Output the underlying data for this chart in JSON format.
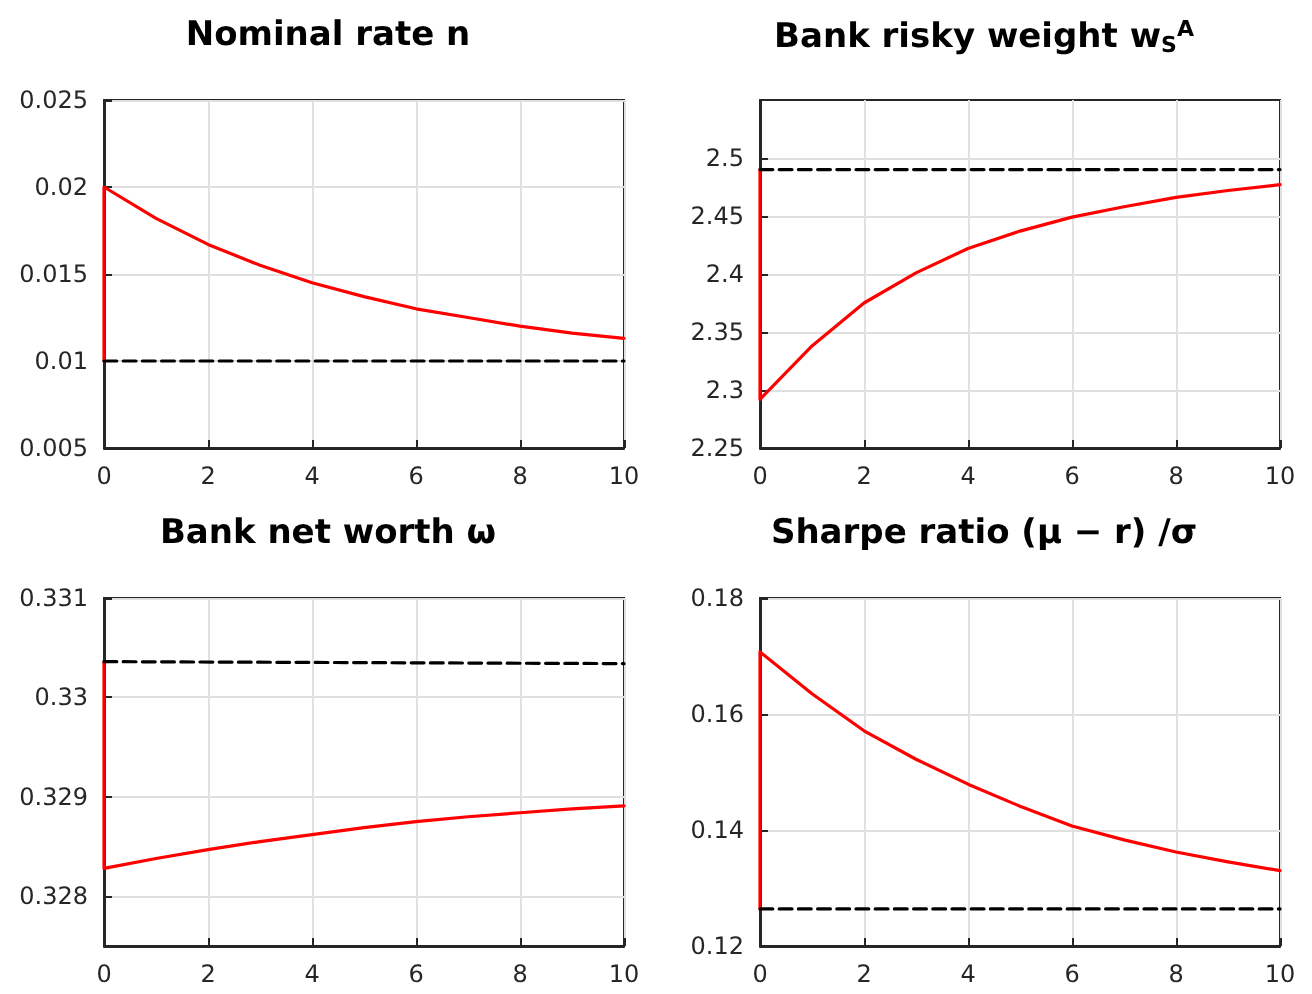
{
  "chart_data": [
    {
      "type": "line",
      "title": "Nominal rate n",
      "xlim": [
        0,
        10
      ],
      "xticks": [
        0,
        2,
        4,
        6,
        8,
        10
      ],
      "ylim": [
        0.005,
        0.025
      ],
      "yticks": [
        0.005,
        0.01,
        0.015,
        0.02,
        0.025
      ],
      "grid": true,
      "marker": "none",
      "series": [
        {
          "color": "#ff0000",
          "line_style": "solid",
          "x": [
            0,
            0,
            1,
            2,
            3,
            4,
            5,
            6,
            7,
            8,
            9,
            10
          ],
          "values": [
            0.01,
            0.02,
            0.0182,
            0.0167,
            0.0155,
            0.0145,
            0.0137,
            0.013,
            0.0125,
            0.012,
            0.0116,
            0.0113
          ]
        },
        {
          "color": "#000000",
          "line_style": "dashed",
          "x": [
            0,
            10
          ],
          "values": [
            0.01,
            0.01
          ]
        }
      ]
    },
    {
      "type": "line",
      "title": "Bank risky weight w$_{S}$$^{A}$",
      "xlim": [
        0,
        10
      ],
      "xticks": [
        0,
        2,
        4,
        6,
        8,
        10
      ],
      "ylim": [
        2.25,
        2.55
      ],
      "yticks": [
        2.25,
        2.3,
        2.35,
        2.4,
        2.45,
        2.5
      ],
      "grid": true,
      "marker": "none",
      "series": [
        {
          "color": "#ff0000",
          "line_style": "solid",
          "x": [
            0,
            0,
            1,
            2,
            3,
            4,
            5,
            6,
            7,
            8,
            9,
            10
          ],
          "values": [
            2.49,
            2.292,
            2.338,
            2.375,
            2.401,
            2.422,
            2.437,
            2.449,
            2.458,
            2.466,
            2.472,
            2.477
          ]
        },
        {
          "color": "#000000",
          "line_style": "dashed",
          "x": [
            0,
            10
          ],
          "values": [
            2.49,
            2.49
          ]
        }
      ]
    },
    {
      "type": "line",
      "title": "Bank net worth ω",
      "xlim": [
        0,
        10
      ],
      "xticks": [
        0,
        2,
        4,
        6,
        8,
        10
      ],
      "ylim": [
        0.3275,
        0.331
      ],
      "yticks": [
        0.328,
        0.329,
        0.33,
        0.331
      ],
      "grid": true,
      "marker": "none",
      "series": [
        {
          "color": "#ff0000",
          "line_style": "solid",
          "x": [
            0,
            0,
            1,
            2,
            3,
            4,
            5,
            6,
            7,
            8,
            9,
            10
          ],
          "values": [
            0.33036,
            0.32828,
            0.32838,
            0.32847,
            0.32855,
            0.32862,
            0.32869,
            0.32875,
            0.3288,
            0.32884,
            0.32888,
            0.32891
          ]
        },
        {
          "color": "#000000",
          "line_style": "dashed",
          "x": [
            0,
            10
          ],
          "values": [
            0.33036,
            0.33034
          ]
        }
      ]
    },
    {
      "type": "line",
      "title": "Sharpe ratio (μ − r) /σ",
      "xlim": [
        0,
        10
      ],
      "xticks": [
        0,
        2,
        4,
        6,
        8,
        10
      ],
      "ylim": [
        0.12,
        0.18
      ],
      "yticks": [
        0.12,
        0.14,
        0.16,
        0.18
      ],
      "grid": true,
      "marker": "none",
      "series": [
        {
          "color": "#ff0000",
          "line_style": "solid",
          "x": [
            0,
            0,
            1,
            2,
            3,
            4,
            5,
            6,
            7,
            8,
            9,
            10
          ],
          "values": [
            0.1264,
            0.1707,
            0.1635,
            0.1571,
            0.1522,
            0.1479,
            0.1441,
            0.1407,
            0.1383,
            0.1362,
            0.1345,
            0.133
          ]
        },
        {
          "color": "#000000",
          "line_style": "dashed",
          "x": [
            0,
            10
          ],
          "values": [
            0.1264,
            0.1264
          ]
        }
      ]
    }
  ]
}
